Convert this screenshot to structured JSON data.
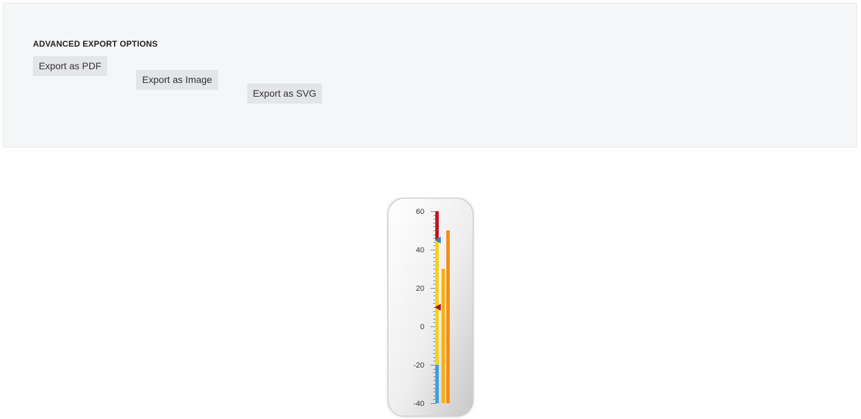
{
  "export_panel": {
    "title": "ADVANCED EXPORT OPTIONS",
    "buttons": {
      "pdf_label": "Export as PDF",
      "image_label": "Export as Image",
      "svg_label": "Export as SVG"
    }
  },
  "chart_data": {
    "type": "linear-gauge",
    "orientation": "vertical",
    "scale": {
      "min": -40,
      "max": 60,
      "major_interval": 20,
      "minor_interval": 2,
      "tick_labels": [
        "60",
        "40",
        "20",
        "0",
        "-20",
        "-40"
      ]
    },
    "ranges": [
      {
        "start": -40,
        "end": -20,
        "color": "#3a9ee4"
      },
      {
        "start": -20,
        "end": 30,
        "color": "#f4d212"
      },
      {
        "start": 30,
        "end": 45,
        "color": "#f4d212"
      },
      {
        "start": 45,
        "end": 60,
        "color": "#c0141c"
      }
    ],
    "bars": [
      {
        "value": 30,
        "color": "#f8b114"
      },
      {
        "value": 50,
        "color": "#f78c15"
      }
    ],
    "pointers": [
      {
        "value": 45,
        "color": "#3b7fc4",
        "shape": "triangle"
      },
      {
        "value": 10,
        "color": "#b0141a",
        "shape": "triangle"
      }
    ],
    "colors": {
      "frame_gradient_light": "#ffffff",
      "frame_gradient_dark": "#c8c8c8",
      "frame_border": "#d0d0d0",
      "tick_color": "#888888"
    }
  }
}
